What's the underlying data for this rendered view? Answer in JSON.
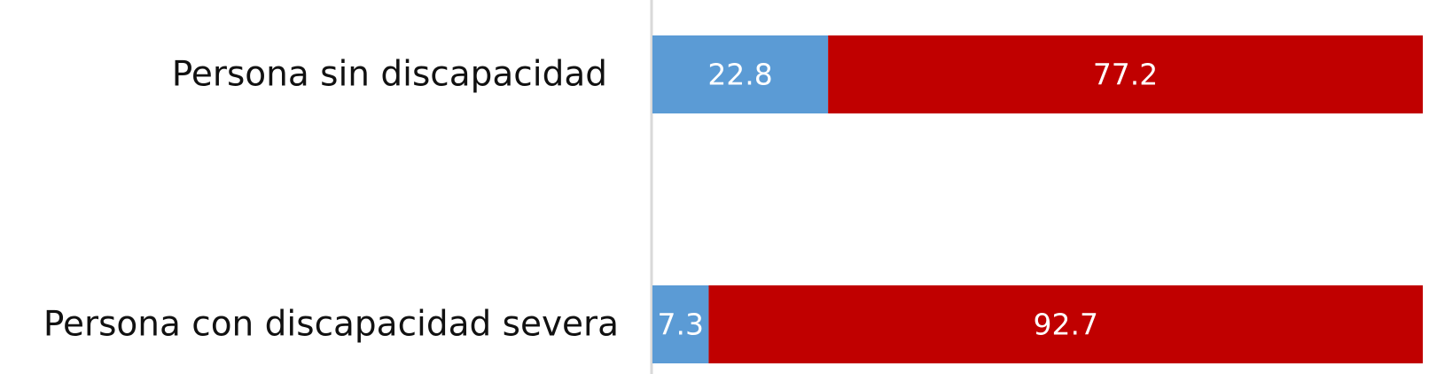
{
  "chart_data": {
    "type": "stacked-barh",
    "categories": [
      "Persona sin discapacidad",
      "Persona con discapacidad severa"
    ],
    "series": [
      {
        "color": "#5b9bd5",
        "values": [
          22.8,
          7.3
        ]
      },
      {
        "color": "#c00000",
        "values": [
          77.2,
          92.7
        ]
      }
    ],
    "xlim": [
      0,
      100
    ]
  }
}
